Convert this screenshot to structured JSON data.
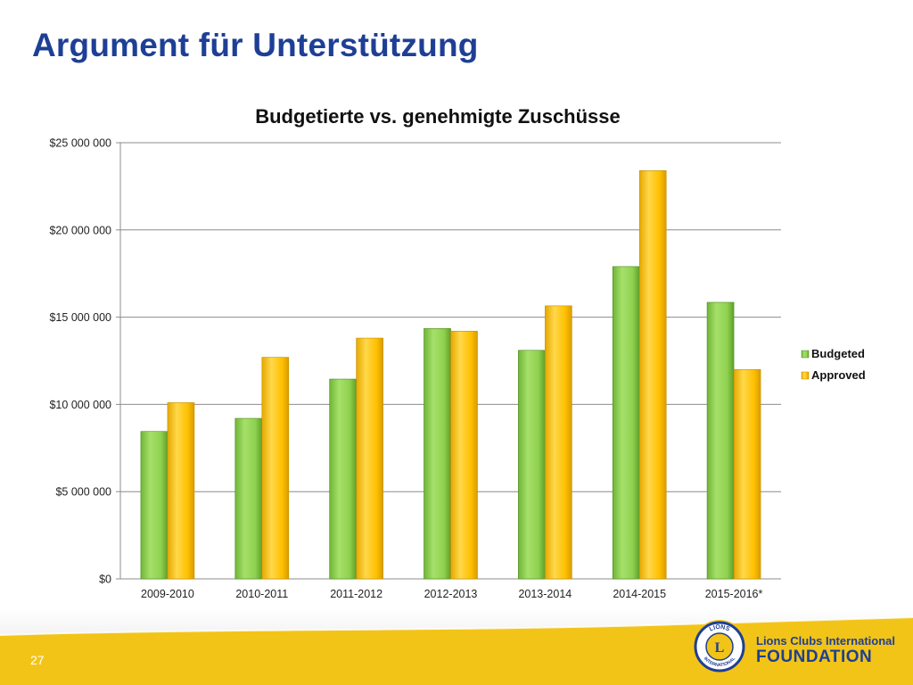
{
  "slide": {
    "title": "Argument für Unterstützung",
    "page_number": "27"
  },
  "branding": {
    "name_line1": "Lions Clubs International",
    "name_line2": "FOUNDATION",
    "logo_icon": "lions-emblem-icon",
    "logo_text_top": "LIONS",
    "logo_text_bottom": "INTERNATIONAL"
  },
  "colors": {
    "title": "#1e3f95",
    "budgeted": "#8fd14f",
    "approved": "#ffc000",
    "footer_yellow": "#f2c417"
  },
  "chart_data": {
    "type": "bar",
    "title": "Budgetierte vs. genehmigte Zuschüsse",
    "categories": [
      "2009-2010",
      "2010-2011",
      "2011-2012",
      "2012-2013",
      "2013-2014",
      "2014-2015",
      "2015-2016*"
    ],
    "series": [
      {
        "name": "Budgeted",
        "color": "#8fd14f",
        "values": [
          8450000,
          9200000,
          11450000,
          14350000,
          13100000,
          17900000,
          15850000
        ]
      },
      {
        "name": "Approved",
        "color": "#ffc000",
        "values": [
          10100000,
          12700000,
          13800000,
          14200000,
          15650000,
          23400000,
          12000000
        ]
      }
    ],
    "y_ticks": [
      "$0",
      "$5 000 000",
      "$10 000 000",
      "$15 000 000",
      "$20 000 000",
      "$25 000 000"
    ],
    "ylim": [
      0,
      25000000
    ],
    "grid": true,
    "legend_position": "right"
  }
}
